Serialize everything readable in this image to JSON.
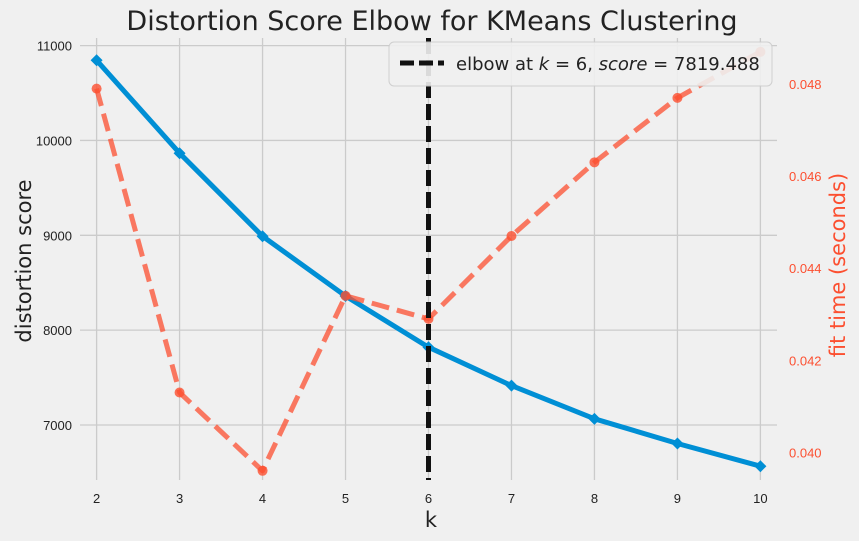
{
  "chart_data": {
    "type": "line",
    "title": "Distortion Score Elbow for KMeans Clustering",
    "xlabel": "k",
    "ylabel": "distortion score",
    "y2label": "fit time (seconds)",
    "x": [
      2,
      3,
      4,
      5,
      6,
      7,
      8,
      9,
      10
    ],
    "xlim": [
      1.8,
      10.2
    ],
    "ylim": [
      6420,
      11080
    ],
    "y2lim": [
      0.0394,
      0.049
    ],
    "yticks": [
      7000,
      8000,
      9000,
      10000,
      11000
    ],
    "y2ticks": [
      0.04,
      0.042,
      0.044,
      0.046,
      0.048
    ],
    "y2tick_labels": [
      "0.040",
      "0.042",
      "0.044",
      "0.046",
      "0.048"
    ],
    "grid": true,
    "legend_position": "top-right",
    "series": [
      {
        "name": "distortion score",
        "axis": "left",
        "color": "#008fd5",
        "marker": "diamond",
        "style": "solid",
        "values": [
          10845,
          9865,
          8990,
          8360,
          7820,
          7415,
          7065,
          6805,
          6565
        ]
      },
      {
        "name": "fit time",
        "axis": "right",
        "color": "#fc4f30",
        "marker": "circle",
        "style": "dashed",
        "values": [
          0.0479,
          0.0413,
          0.0396,
          0.0434,
          0.0429,
          0.0447,
          0.0463,
          0.0477,
          0.0487
        ]
      }
    ],
    "elbow": {
      "k": 6,
      "score": 7819.488,
      "color": "#111111",
      "legend_prefix": "elbow at ",
      "legend_k_var": "k",
      "legend_k_text": " = 6, ",
      "legend_score_var": "score",
      "legend_score_text": " = 7819.488"
    },
    "colors": {
      "background": "#f0f0f0",
      "grid": "#cbcbcb",
      "right_axis": "#fc4f30"
    }
  }
}
